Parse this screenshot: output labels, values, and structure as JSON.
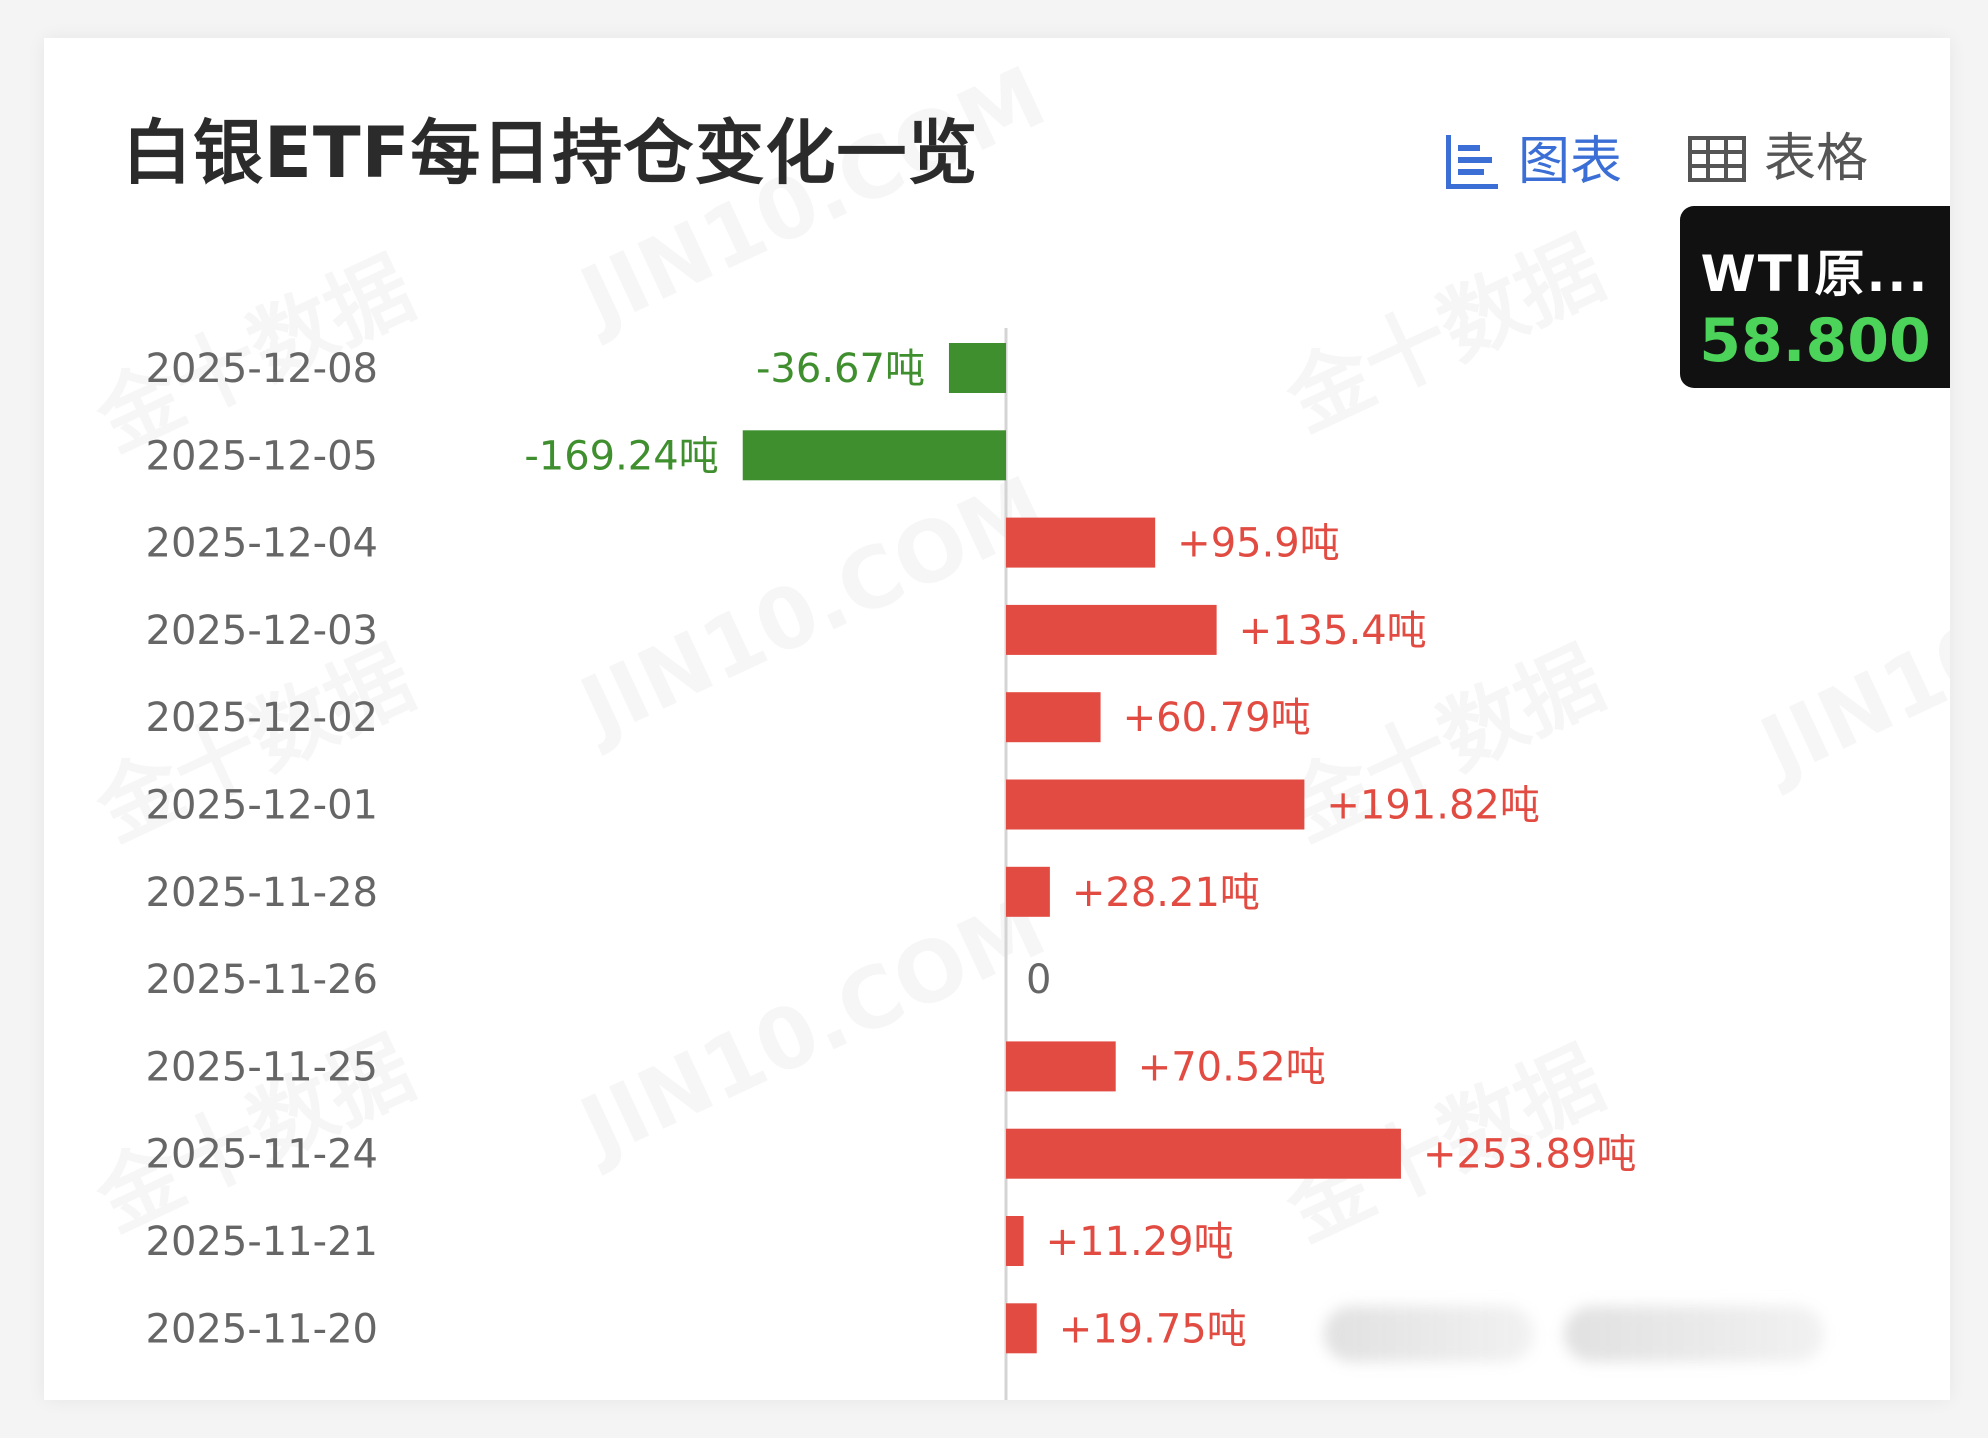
{
  "header": {
    "title": "白银ETF每日持仓变化一览",
    "toggle_chart_label": "图表",
    "toggle_table_label": "表格"
  },
  "ticker": {
    "name": "WTI原...",
    "value": "58.800"
  },
  "colors": {
    "positive": "#e24b41",
    "negative": "#3f8f2f",
    "accent": "#3b6fd6"
  },
  "chart_data": {
    "type": "bar",
    "orientation": "horizontal",
    "title": "白银ETF每日持仓变化一览",
    "unit": "吨",
    "categories": [
      "2025-12-08",
      "2025-12-05",
      "2025-12-04",
      "2025-12-03",
      "2025-12-02",
      "2025-12-01",
      "2025-11-28",
      "2025-11-26",
      "2025-11-25",
      "2025-11-24",
      "2025-11-21",
      "2025-11-20"
    ],
    "values": [
      -36.67,
      -169.24,
      95.9,
      135.4,
      60.79,
      191.82,
      28.21,
      0,
      70.52,
      253.89,
      11.29,
      19.75
    ],
    "data_labels": [
      "-36.67吨",
      "-169.24吨",
      "+95.9吨",
      "+135.4吨",
      "+60.79吨",
      "+191.82吨",
      "+28.21吨",
      "0",
      "+70.52吨",
      "+253.89吨",
      "+11.29吨",
      "+19.75吨"
    ],
    "xlim": [
      -169.24,
      253.89
    ],
    "grid": false,
    "legend": "none"
  },
  "watermarks": [
    "金十数据",
    "JIN10.COM"
  ]
}
